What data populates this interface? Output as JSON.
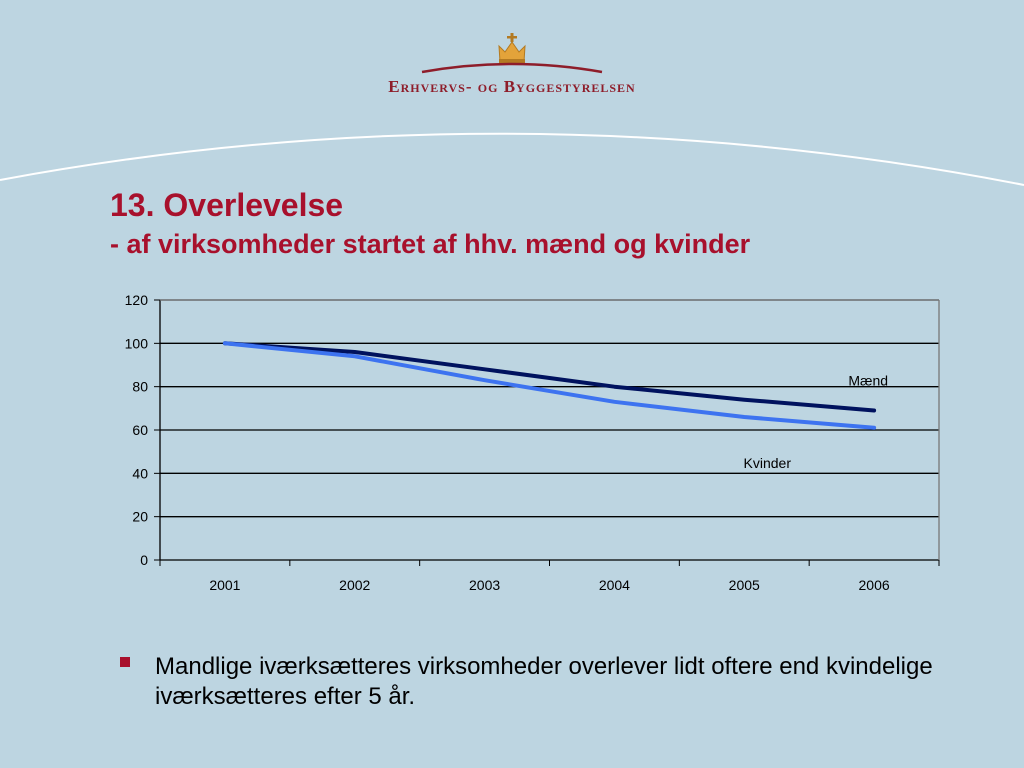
{
  "header": {
    "org_name": "Erhvervs- og Byggestyrelsen",
    "logo_icon": "crown-icon"
  },
  "slide": {
    "title": "13. Overlevelse",
    "subtitle": "- af virksomheder startet af hhv. mænd og kvinder"
  },
  "chart_data": {
    "type": "line",
    "x": [
      "2001",
      "2002",
      "2003",
      "2004",
      "2005",
      "2006"
    ],
    "ylim": [
      0,
      120
    ],
    "yticks": [
      0,
      20,
      40,
      60,
      80,
      100,
      120
    ],
    "grid": true,
    "series": [
      {
        "name": "Mænd",
        "values": [
          100,
          96,
          88,
          80,
          74,
          69
        ],
        "color": "#00125e"
      },
      {
        "name": "Kvinder",
        "values": [
          100,
          94,
          83,
          73,
          66,
          61
        ],
        "color": "#3d73f0"
      }
    ]
  },
  "bullets": [
    "Mandlige iværksætteres virksomheder overlever lidt oftere end kvindelige iværksætteres efter 5 år."
  ],
  "colors": {
    "background": "#bdd5e1",
    "title": "#a8102c",
    "org_name": "#8e1d2a"
  }
}
